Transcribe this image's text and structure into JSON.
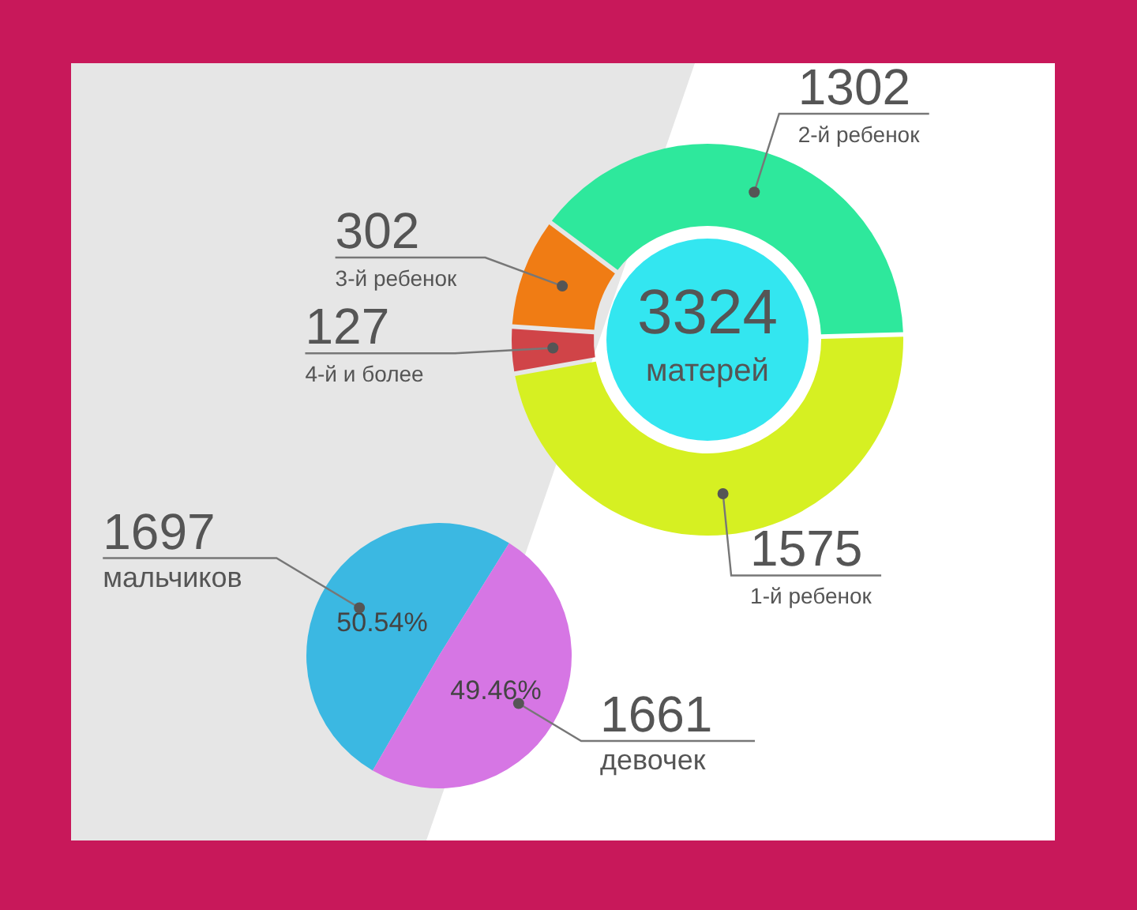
{
  "chart_data": [
    {
      "type": "donut",
      "categories": [
        "2-й ребенок",
        "1-й ребенок",
        "4-й и более",
        "3-й ребенок"
      ],
      "values": [
        1302,
        1575,
        127,
        302
      ],
      "colors": [
        "#2ee89c",
        "#d6f022",
        "#d04448",
        "#f07c14"
      ],
      "data_labels": true,
      "annotations": [
        "3324",
        "матерей"
      ]
    },
    {
      "type": "pie",
      "categories": [
        "мальчиков",
        "девочек"
      ],
      "values": [
        50.54,
        49.46
      ],
      "colors": [
        "#3bb8e2",
        "#d676e4"
      ],
      "value_labels": [
        "50.54%",
        "49.46%"
      ],
      "annotations": [
        {
          "text": "1697",
          "x": "мальчиков"
        },
        {
          "text": "1661",
          "x": "девочек"
        }
      ]
    }
  ]
}
